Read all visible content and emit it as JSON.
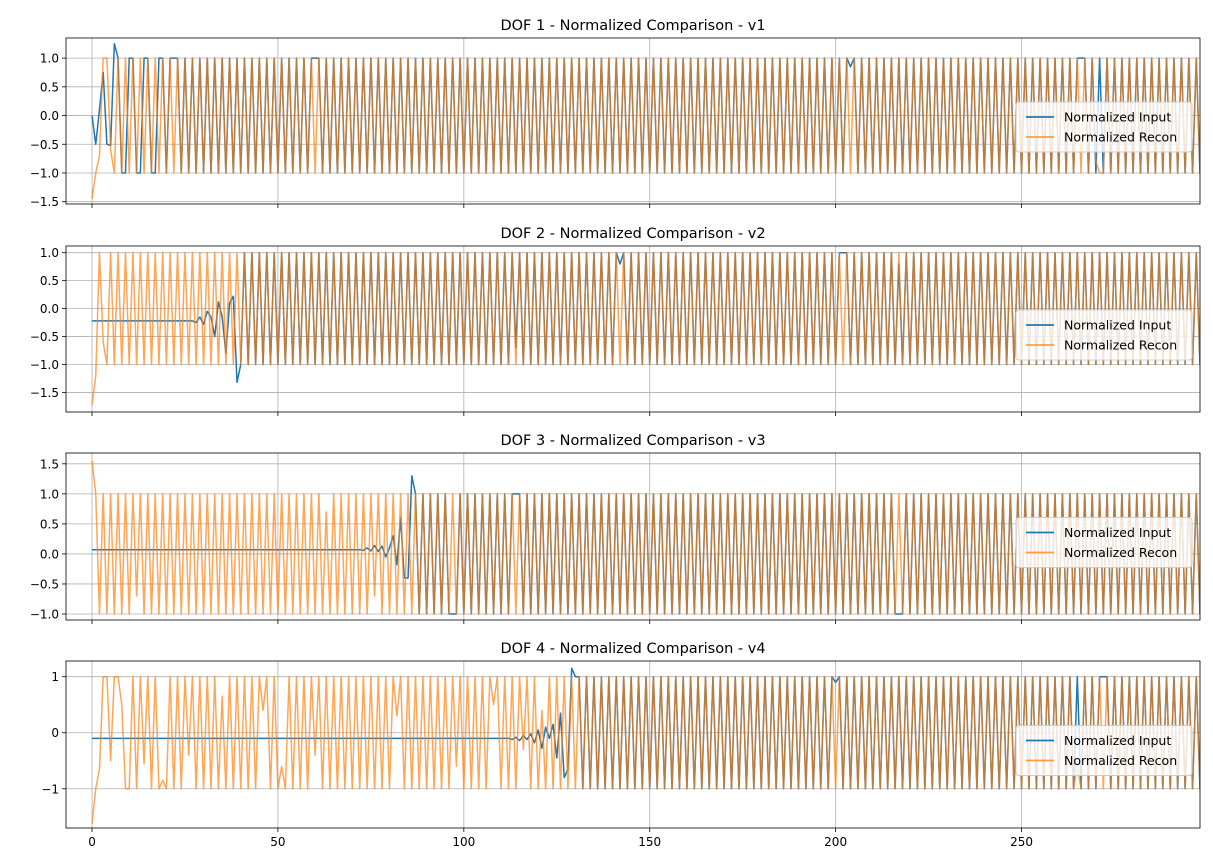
{
  "colors": {
    "input": "#1f77b4",
    "recon": "#ff7f0e",
    "grid": "#b0b0b0",
    "axis": "#000000"
  },
  "chart_data": [
    {
      "type": "line",
      "title": "DOF 1 - Normalized Comparison - v1",
      "xlim": [
        -7,
        298
      ],
      "ylim": [
        -1.54,
        1.35
      ],
      "yticks": [
        -1.5,
        -1.0,
        -0.5,
        0.0,
        0.5,
        1.0
      ],
      "ytick_labels": [
        "−1.5",
        "−1.0",
        "−0.5",
        "0.0",
        "0.5",
        "1.0"
      ],
      "xticks": [
        0,
        50,
        100,
        150,
        200,
        250
      ],
      "show_xtick_labels": false,
      "grid": true,
      "legend": "center right",
      "series": [
        {
          "name": "Normalized Input",
          "start": [
            0,
            -0.5,
            0.1,
            0.75,
            -0.5,
            -0.52,
            1.25,
            1.0,
            -1.0,
            -1.0,
            1.0,
            1.0,
            -1.0,
            -1.0,
            1.0,
            1.0,
            -1.0,
            -1.0,
            1.0,
            1.0
          ],
          "align_from": 20,
          "glitches": [
            [
              22,
              1.0
            ],
            [
              27,
              1.0
            ],
            [
              35,
              1.0
            ],
            [
              50,
              -1.0
            ],
            [
              60,
              1.0
            ],
            [
              64,
              -1.0
            ],
            [
              80,
              -1.0
            ],
            [
              204,
              0.85
            ],
            [
              266,
              1.0
            ]
          ]
        },
        {
          "name": "Normalized Recon",
          "start": [
            -1.45,
            -1.0,
            -0.7,
            1.0,
            1.0,
            -0.6
          ],
          "align_from": 6,
          "tail": [
            [
              270,
              -0.8
            ],
            [
              271,
              -1.0
            ],
            [
              272,
              -1.0
            ]
          ]
        }
      ]
    },
    {
      "type": "line",
      "title": "DOF 2 - Normalized Comparison - v2",
      "xlim": [
        -7,
        298
      ],
      "ylim": [
        -1.85,
        1.12
      ],
      "yticks": [
        -1.5,
        -1.0,
        -0.5,
        0.0,
        0.5,
        1.0
      ],
      "ytick_labels": [
        "−1.5",
        "−1.0",
        "−0.5",
        "0.0",
        "0.5",
        "1.0"
      ],
      "xticks": [
        0,
        50,
        100,
        150,
        200,
        250
      ],
      "show_xtick_labels": false,
      "grid": true,
      "legend": "center right",
      "series": [
        {
          "name": "Normalized Input",
          "flat": -0.22,
          "flat_until": 27,
          "wiggle": [
            [
              28,
              -0.25
            ],
            [
              29,
              -0.15
            ],
            [
              30,
              -0.28
            ],
            [
              31,
              -0.05
            ],
            [
              32,
              -0.15
            ],
            [
              33,
              -0.5
            ],
            [
              34,
              0.12
            ],
            [
              35,
              -0.15
            ],
            [
              36,
              -0.8
            ],
            [
              37,
              0.1
            ],
            [
              38,
              0.22
            ],
            [
              39,
              -1.32
            ],
            [
              40,
              -1.0
            ]
          ],
          "align_from": 41,
          "glitches": [
            [
              97,
              1.0
            ],
            [
              114,
              -0.7
            ],
            [
              142,
              0.8
            ],
            [
              202,
              1.0
            ],
            [
              217,
              0.8
            ]
          ]
        },
        {
          "name": "Normalized Recon",
          "start": [
            -1.72,
            -1.2,
            1.0,
            -0.6
          ],
          "align_from": 4
        }
      ]
    },
    {
      "type": "line",
      "title": "DOF 3 - Normalized Comparison - v3",
      "xlim": [
        -7,
        298
      ],
      "ylim": [
        -1.1,
        1.68
      ],
      "yticks": [
        -1.0,
        -0.5,
        0.0,
        0.5,
        1.0,
        1.5
      ],
      "ytick_labels": [
        "−1.0",
        "−0.5",
        "0.0",
        "0.5",
        "1.0",
        "1.5"
      ],
      "xticks": [
        0,
        50,
        100,
        150,
        200,
        250
      ],
      "show_xtick_labels": false,
      "grid": true,
      "legend": "center right",
      "series": [
        {
          "name": "Normalized Input",
          "flat": 0.07,
          "flat_until": 72,
          "wiggle": [
            [
              73,
              0.06
            ],
            [
              74,
              0.1
            ],
            [
              75,
              0.05
            ],
            [
              76,
              0.14
            ],
            [
              77,
              0.04
            ],
            [
              78,
              0.13
            ],
            [
              79,
              -0.05
            ],
            [
              80,
              0.1
            ],
            [
              81,
              0.3
            ],
            [
              82,
              -0.18
            ],
            [
              83,
              0.6
            ],
            [
              84,
              -0.4
            ],
            [
              85,
              -0.4
            ],
            [
              86,
              1.3
            ],
            [
              87,
              1.0
            ]
          ],
          "align_from": 88,
          "glitches": [
            [
              97,
              -1.0
            ],
            [
              114,
              1.0
            ],
            [
              142,
              -1.0
            ],
            [
              202,
              -1.0
            ],
            [
              217,
              -1.0
            ]
          ]
        },
        {
          "name": "Normalized Recon",
          "start": [
            1.55,
            1.0,
            -1.0,
            1.0
          ],
          "align_from": 4,
          "glitches": [
            [
              12,
              -0.7
            ],
            [
              63,
              0.7
            ],
            [
              76,
              -0.7
            ]
          ]
        }
      ]
    },
    {
      "type": "line",
      "title": "DOF 4 - Normalized Comparison - v4",
      "xlim": [
        -7,
        298
      ],
      "ylim": [
        -1.7,
        1.28
      ],
      "yticks": [
        -1,
        0,
        1
      ],
      "ytick_labels": [
        "−1",
        "0",
        "1"
      ],
      "xticks": [
        0,
        50,
        100,
        150,
        200,
        250
      ],
      "xtick_labels": [
        "0",
        "50",
        "100",
        "150",
        "200",
        "250"
      ],
      "show_xtick_labels": true,
      "grid": true,
      "legend": "center right",
      "series": [
        {
          "name": "Normalized Input",
          "flat": -0.1,
          "flat_until": 112,
          "wiggle": [
            [
              113,
              -0.12
            ],
            [
              114,
              -0.08
            ],
            [
              115,
              -0.14
            ],
            [
              116,
              -0.05
            ],
            [
              117,
              -0.12
            ],
            [
              118,
              -0.02
            ],
            [
              119,
              -0.18
            ],
            [
              120,
              0.05
            ],
            [
              121,
              -0.28
            ],
            [
              122,
              0.1
            ],
            [
              123,
              -0.1
            ],
            [
              124,
              0.15
            ],
            [
              125,
              -0.45
            ],
            [
              126,
              0.35
            ],
            [
              127,
              -0.8
            ],
            [
              128,
              -0.65
            ],
            [
              129,
              1.15
            ],
            [
              130,
              1.0
            ]
          ],
          "align_from": 131,
          "glitches": [
            [
              200,
              0.9
            ],
            [
              272,
              1.0
            ],
            [
              273,
              1.0
            ]
          ]
        },
        {
          "name": "Normalized Recon",
          "start": [
            -1.62,
            -1.0,
            -0.65,
            1.0,
            1.0,
            -0.5,
            1.0,
            1.0,
            0.5,
            -1.0
          ],
          "align_from": 10,
          "glitches": [
            [
              14,
              -0.55
            ],
            [
              19,
              -0.85
            ],
            [
              26,
              -0.4
            ],
            [
              35,
              0.65
            ],
            [
              46,
              0.4
            ],
            [
              51,
              -0.6
            ],
            [
              60,
              -0.4
            ],
            [
              82,
              0.3
            ],
            [
              98,
              -0.6
            ],
            [
              108,
              0.5
            ],
            [
              116,
              -0.3
            ],
            [
              121,
              0.4
            ]
          ],
          "tail": [
            [
              265,
              -0.6
            ],
            [
              266,
              -1.0
            ]
          ]
        }
      ]
    }
  ]
}
